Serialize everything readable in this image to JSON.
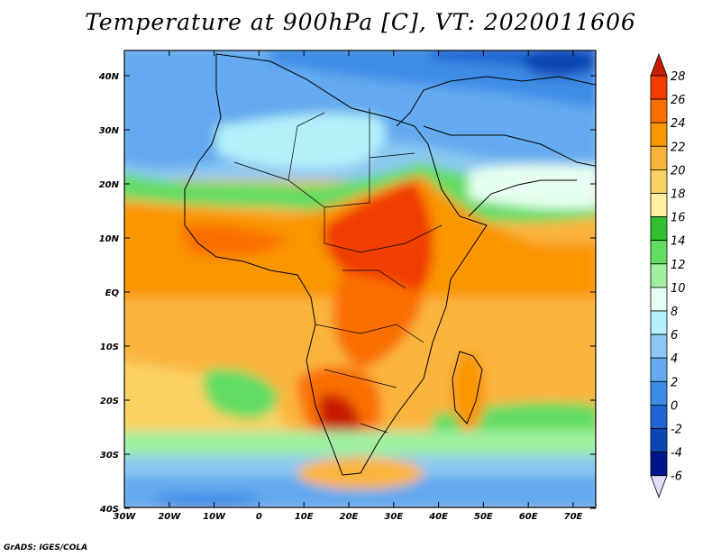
{
  "title": "Temperature at 900hPa [C], VT: 2020011606",
  "credit": "GrADS: IGES/COLA",
  "map": {
    "lon_range": [
      -30,
      75
    ],
    "lat_range": [
      -40,
      45
    ],
    "x_ticks": [
      "30W",
      "20W",
      "10W",
      "0",
      "10E",
      "20E",
      "30E",
      "40E",
      "50E",
      "60E",
      "70E"
    ],
    "y_ticks": [
      "40N",
      "30N",
      "20N",
      "10N",
      "EQ",
      "10S",
      "20S",
      "30S",
      "40S"
    ]
  },
  "colorbar": {
    "levels": [
      "28",
      "26",
      "24",
      "22",
      "20",
      "18",
      "16",
      "14",
      "12",
      "10",
      "8",
      "6",
      "4",
      "2",
      "0",
      "-2",
      "-4",
      "-6"
    ],
    "colors": [
      "#c81e00",
      "#f03c00",
      "#fa6e00",
      "#fa9600",
      "#fab43c",
      "#fad264",
      "#fff0a0",
      "#30c030",
      "#64dc64",
      "#a0f0a0",
      "#e6fff0",
      "#b4f0fa",
      "#8cc8f0",
      "#64aaf0",
      "#3c8ce6",
      "#1e64d2",
      "#0a46b4",
      "#00148c",
      "#e0dcff"
    ]
  }
}
